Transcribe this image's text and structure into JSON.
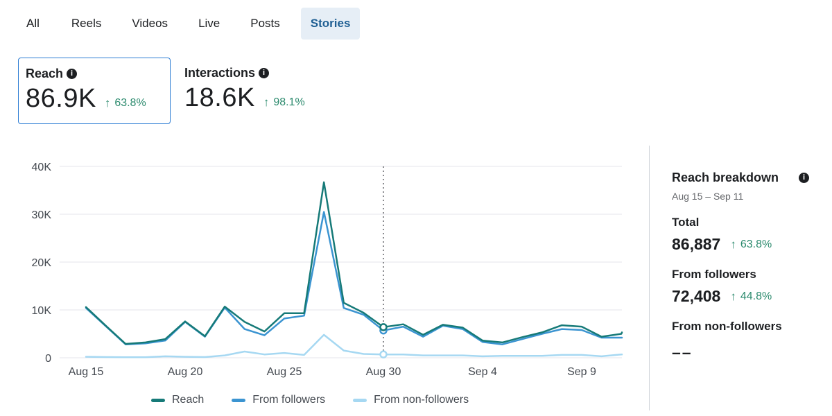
{
  "tabs": [
    {
      "label": "All"
    },
    {
      "label": "Reels"
    },
    {
      "label": "Videos"
    },
    {
      "label": "Live"
    },
    {
      "label": "Posts"
    },
    {
      "label": "Stories"
    }
  ],
  "active_tab": "Stories",
  "metrics": {
    "reach": {
      "label": "Reach",
      "value": "86.9K",
      "change": "63.8%"
    },
    "interactions": {
      "label": "Interactions",
      "value": "18.6K",
      "change": "98.1%"
    }
  },
  "breakdown": {
    "title": "Reach breakdown",
    "date_range": "Aug 15 – Sep 11",
    "total_label": "Total",
    "total_value": "86,887",
    "total_change": "63.8%",
    "followers_label": "From followers",
    "followers_value": "72,408",
    "followers_change": "44.8%",
    "non_followers_label": "From non-followers",
    "non_followers_value": "––"
  },
  "legend": {
    "reach": "Reach",
    "followers": "From followers",
    "non_followers": "From non-followers"
  },
  "colors": {
    "reach": "#167a78",
    "followers": "#3b94d1",
    "non_followers": "#a6d8f2",
    "positive": "#2b8a6d",
    "accent": "#1f5f93"
  },
  "chart_data": {
    "type": "line",
    "title": "",
    "xlabel": "",
    "ylabel": "",
    "ylim": [
      0,
      40000
    ],
    "yticks": [
      0,
      10000,
      20000,
      30000,
      40000
    ],
    "ytick_labels": [
      "0",
      "10K",
      "20K",
      "30K",
      "40K"
    ],
    "x_start_day": 15,
    "xtick_labels": [
      "Aug 15",
      "Aug 20",
      "Aug 25",
      "Aug 30",
      "Sep 4",
      "Sep 9"
    ],
    "xtick_days": [
      0,
      5,
      10,
      15,
      20,
      25
    ],
    "hover_day": 15,
    "x_days": [
      0,
      1,
      2,
      3,
      4,
      5,
      6,
      7,
      8,
      9,
      10,
      11,
      12,
      13,
      14,
      15,
      16,
      17,
      18,
      19,
      20,
      21,
      22,
      23,
      24,
      25,
      26,
      27,
      28
    ],
    "series": [
      {
        "name": "Reach",
        "values": [
          10600,
          6700,
          2900,
          3200,
          3900,
          7600,
          4500,
          10700,
          7500,
          5500,
          9300,
          9300,
          36700,
          11500,
          9400,
          6400,
          7000,
          4800,
          6900,
          6300,
          3600,
          3200,
          4300,
          5300,
          6800,
          6500,
          4400,
          5000,
          null
        ]
      },
      {
        "name": "From followers",
        "values": [
          10400,
          6600,
          2800,
          3000,
          3600,
          7500,
          4400,
          10500,
          6000,
          4700,
          8200,
          8800,
          30500,
          10400,
          9000,
          5700,
          6500,
          4400,
          6700,
          6000,
          3300,
          2800,
          3900,
          5000,
          6000,
          5800,
          4200,
          4200,
          null
        ]
      },
      {
        "name": "From non-followers",
        "values": [
          200,
          150,
          100,
          100,
          300,
          200,
          150,
          500,
          1300,
          700,
          1000,
          600,
          4800,
          1500,
          800,
          700,
          700,
          500,
          500,
          500,
          300,
          400,
          400,
          400,
          600,
          600,
          300,
          700,
          null
        ]
      }
    ]
  }
}
